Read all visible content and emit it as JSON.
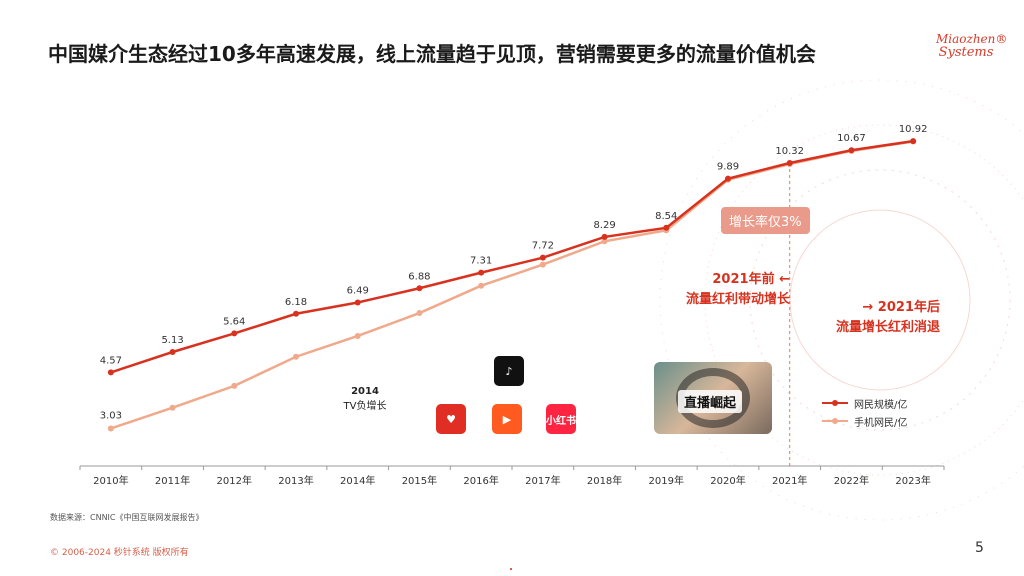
{
  "header": {
    "title": "中国媒介生态经过10多年高速发展，线上流量趋于见顶，营销需要更多的流量价值机会",
    "logo_line1": "Miaozhen®",
    "logo_line2": "Systems"
  },
  "chart_data": {
    "type": "line",
    "categories": [
      "2010年",
      "2011年",
      "2012年",
      "2013年",
      "2014年",
      "2015年",
      "2016年",
      "2017年",
      "2018年",
      "2019年",
      "2020年",
      "2021年",
      "2022年",
      "2023年"
    ],
    "series": [
      {
        "name": "网民规模/亿",
        "color": "#d7321f",
        "values": [
          4.57,
          5.13,
          5.64,
          6.18,
          6.49,
          6.88,
          7.31,
          7.72,
          8.29,
          8.54,
          9.89,
          10.32,
          10.67,
          10.92
        ]
      },
      {
        "name": "手机网民/亿",
        "color": "#f0a98a",
        "values": [
          3.03,
          3.6,
          4.2,
          5.0,
          5.57,
          6.2,
          6.95,
          7.53,
          8.17,
          8.47,
          9.86,
          10.29,
          10.65,
          10.91
        ]
      }
    ],
    "data_labels": [
      "4.57",
      "5.13",
      "5.64",
      "6.18",
      "6.49",
      "6.88",
      "7.31",
      "7.72",
      "8.29",
      "8.54",
      "9.89",
      "10.32",
      "10.67",
      "10.92"
    ],
    "ylim": [
      2.0,
      11.5
    ],
    "grid": false,
    "legend": "bottom-right"
  },
  "annotations": {
    "note_2014_year": "2014",
    "note_2014_text": "TV负增长",
    "growth_badge": "增长率仅3%",
    "before_2021_line1": "2021年前 ←",
    "before_2021_line2": "流量红利带动增长",
    "after_2021_line1": "→ 2021年后",
    "after_2021_line2": "流量增长红利消退",
    "live_label": "直播崛起"
  },
  "apps": {
    "tiktok": "♪",
    "pdd": "♥",
    "kuaishou": "▶",
    "xhs": "小红书"
  },
  "footer": {
    "source": "数据来源：CNNIC《中国互联网发展报告》",
    "copyright": "© 2006-2024 秒针系统 版权所有",
    "page_number": "5"
  }
}
